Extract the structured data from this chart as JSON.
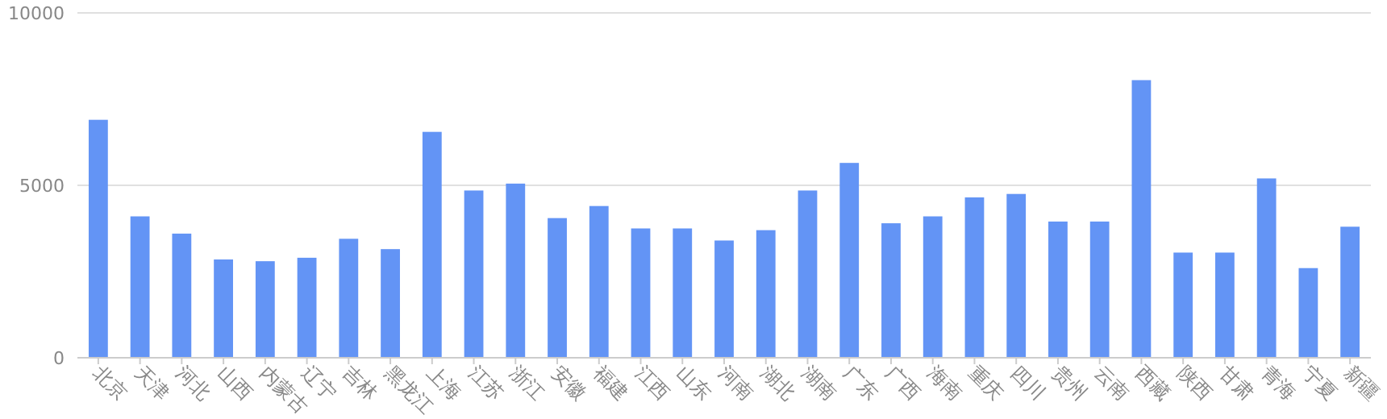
{
  "chart_data": {
    "type": "bar",
    "categories": [
      "北京",
      "天津",
      "河北",
      "山西",
      "内蒙古",
      "辽宁",
      "吉林",
      "黑龙江",
      "上海",
      "江苏",
      "浙江",
      "安徽",
      "福建",
      "江西",
      "山东",
      "河南",
      "湖北",
      "湖南",
      "广东",
      "广西",
      "海南",
      "重庆",
      "四川",
      "贵州",
      "云南",
      "西藏",
      "陕西",
      "甘肃",
      "青海",
      "宁夏",
      "新疆"
    ],
    "values": [
      6900,
      4100,
      3600,
      2850,
      2800,
      2900,
      3450,
      3150,
      6550,
      4850,
      5050,
      4050,
      4400,
      3750,
      3750,
      3400,
      3700,
      4850,
      5650,
      3900,
      4100,
      4650,
      4750,
      3950,
      3950,
      8050,
      3050,
      3050,
      5200,
      2600,
      3800
    ],
    "color": "#6394f5",
    "ylim": [
      0,
      10000
    ],
    "yticks": [
      0,
      5000,
      10000
    ],
    "grid": "y"
  }
}
